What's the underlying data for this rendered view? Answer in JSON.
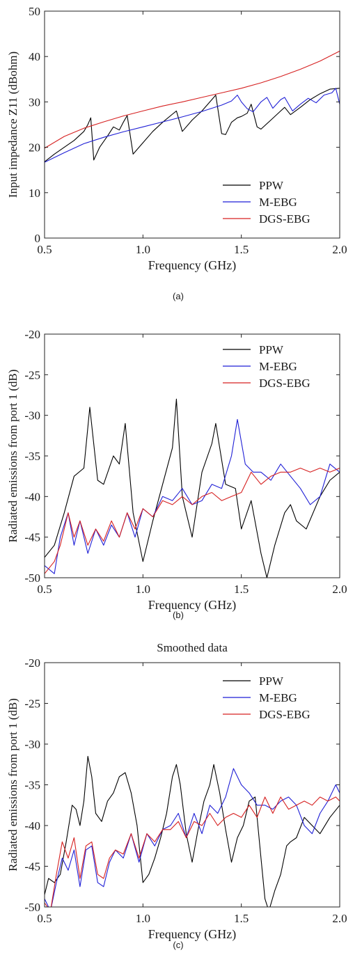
{
  "figure": {
    "captions": [
      "(a)",
      "(b)",
      "(c)"
    ]
  },
  "chart_data": [
    {
      "type": "line",
      "title": "",
      "xlabel": "Frequency (GHz)",
      "ylabel": "Input impedance Z11 (dBohm)",
      "xlim": [
        0.5,
        2.0
      ],
      "ylim": [
        0,
        50
      ],
      "xticks": [
        "0.5",
        "1.0",
        "1.5",
        "2.0"
      ],
      "yticks": [
        "0",
        "10",
        "20",
        "30",
        "40",
        "50"
      ],
      "legend_position": "bottom-right",
      "grid": false,
      "series": [
        {
          "name": "PPW",
          "color": "#000000",
          "x": [
            0.5,
            0.55,
            0.6,
            0.65,
            0.7,
            0.72,
            0.735,
            0.75,
            0.78,
            0.82,
            0.85,
            0.88,
            0.9,
            0.92,
            0.95,
            1.0,
            1.05,
            1.1,
            1.15,
            1.17,
            1.2,
            1.25,
            1.3,
            1.35,
            1.37,
            1.4,
            1.42,
            1.45,
            1.48,
            1.5,
            1.53,
            1.55,
            1.58,
            1.6,
            1.65,
            1.7,
            1.72,
            1.75,
            1.8,
            1.85,
            1.9,
            1.95,
            2.0
          ],
          "y": [
            16.8,
            18.5,
            20,
            21.5,
            23.5,
            25,
            26.5,
            17.2,
            20,
            22.5,
            24.5,
            23.8,
            25.5,
            27,
            18.5,
            21,
            23.5,
            25.5,
            27.3,
            28,
            23.5,
            26,
            28,
            30.5,
            31.5,
            23,
            22.8,
            25.5,
            26.5,
            26.8,
            27.5,
            29.5,
            24.5,
            24,
            26,
            28,
            28.8,
            27.2,
            28.8,
            30.5,
            31.8,
            32.8,
            33
          ]
        },
        {
          "name": "M-EBG",
          "color": "#1f1fd6",
          "x": [
            0.5,
            0.6,
            0.7,
            0.8,
            0.9,
            1.0,
            1.1,
            1.2,
            1.3,
            1.4,
            1.45,
            1.48,
            1.5,
            1.53,
            1.56,
            1.6,
            1.63,
            1.66,
            1.7,
            1.72,
            1.76,
            1.8,
            1.84,
            1.88,
            1.92,
            1.96,
            1.98,
            2.0
          ],
          "y": [
            16.7,
            18.8,
            20.8,
            22.2,
            23.4,
            24.5,
            25.6,
            26.7,
            27.9,
            29.3,
            30.2,
            31.5,
            30.0,
            28.5,
            27.8,
            30.0,
            31.0,
            28.6,
            30.5,
            31.0,
            28.0,
            29.5,
            30.8,
            29.8,
            31.5,
            32.0,
            33.0,
            29.5
          ]
        },
        {
          "name": "DGS-EBG",
          "color": "#d62020",
          "x": [
            0.5,
            0.6,
            0.7,
            0.8,
            0.9,
            1.0,
            1.1,
            1.2,
            1.3,
            1.4,
            1.5,
            1.6,
            1.7,
            1.8,
            1.9,
            2.0
          ],
          "y": [
            19.8,
            22.4,
            24.2,
            25.6,
            26.9,
            28.0,
            29.1,
            30.0,
            31.0,
            32.0,
            33.0,
            34.2,
            35.6,
            37.2,
            39.0,
            41.2
          ]
        }
      ]
    },
    {
      "type": "line",
      "title": "",
      "xlabel": "Frequency (GHz)",
      "ylabel": "Radiated emissions from port 1 (dB)",
      "xlim": [
        0.5,
        2.0
      ],
      "ylim": [
        -50,
        -20
      ],
      "xticks": [
        "0.5",
        "1.0",
        "1.5",
        "2.0"
      ],
      "yticks": [
        "-50",
        "-45",
        "-40",
        "-35",
        "-30",
        "-25",
        "-20"
      ],
      "legend_position": "top-right",
      "grid": false,
      "series": [
        {
          "name": "PPW",
          "color": "#000000",
          "x": [
            0.5,
            0.55,
            0.6,
            0.65,
            0.7,
            0.73,
            0.77,
            0.8,
            0.85,
            0.88,
            0.91,
            0.95,
            1.0,
            1.05,
            1.1,
            1.15,
            1.17,
            1.2,
            1.25,
            1.3,
            1.35,
            1.37,
            1.42,
            1.47,
            1.5,
            1.55,
            1.6,
            1.63,
            1.67,
            1.72,
            1.75,
            1.78,
            1.83,
            1.9,
            1.95,
            2.0
          ],
          "y": [
            -47.5,
            -46,
            -42,
            -37.5,
            -36.5,
            -29,
            -38,
            -38.5,
            -35,
            -36,
            -31,
            -42,
            -48,
            -43,
            -38.5,
            -34,
            -28,
            -40,
            -45,
            -37,
            -33.5,
            -31,
            -38.5,
            -39,
            -44,
            -40.5,
            -47,
            -50,
            -46,
            -42,
            -41,
            -43,
            -44,
            -40,
            -38,
            -37
          ]
        },
        {
          "name": "M-EBG",
          "color": "#1f1fd6",
          "x": [
            0.5,
            0.55,
            0.58,
            0.62,
            0.65,
            0.68,
            0.72,
            0.76,
            0.8,
            0.84,
            0.88,
            0.92,
            0.96,
            1.0,
            1.05,
            1.1,
            1.15,
            1.2,
            1.25,
            1.3,
            1.35,
            1.4,
            1.45,
            1.48,
            1.52,
            1.56,
            1.6,
            1.65,
            1.7,
            1.75,
            1.8,
            1.85,
            1.9,
            1.95,
            2.0
          ],
          "y": [
            -48.5,
            -49.5,
            -45,
            -42,
            -46,
            -43,
            -47,
            -44,
            -46,
            -43.5,
            -45,
            -42,
            -45,
            -41.5,
            -42.5,
            -40,
            -40.5,
            -39,
            -41,
            -40.5,
            -38.5,
            -39,
            -35,
            -30.5,
            -36,
            -37,
            -37,
            -38,
            -36,
            -37.5,
            -39,
            -41,
            -40,
            -36,
            -37
          ]
        },
        {
          "name": "DGS-EBG",
          "color": "#d62020",
          "x": [
            0.5,
            0.55,
            0.58,
            0.62,
            0.65,
            0.68,
            0.72,
            0.76,
            0.8,
            0.84,
            0.88,
            0.92,
            0.96,
            1.0,
            1.05,
            1.1,
            1.15,
            1.2,
            1.25,
            1.3,
            1.35,
            1.4,
            1.45,
            1.5,
            1.55,
            1.6,
            1.65,
            1.7,
            1.75,
            1.8,
            1.85,
            1.9,
            1.95,
            2.0
          ],
          "y": [
            -49.5,
            -48,
            -46,
            -42,
            -45,
            -43,
            -46,
            -44,
            -45.5,
            -43,
            -45,
            -42,
            -44,
            -41.5,
            -42.5,
            -40.5,
            -41,
            -40,
            -41,
            -40,
            -39.5,
            -40.5,
            -40,
            -39.5,
            -37,
            -38.5,
            -37.5,
            -37,
            -37,
            -36.5,
            -37,
            -36.5,
            -37,
            -36.5
          ]
        }
      ]
    },
    {
      "type": "line",
      "title": "Smoothed data",
      "xlabel": "Frequency (GHz)",
      "ylabel": "Radiated emissions from port 1 (dB)",
      "xlim": [
        0.5,
        2.0
      ],
      "ylim": [
        -50,
        -20
      ],
      "xticks": [
        "0.5",
        "1.0",
        "1.5",
        "2.0"
      ],
      "yticks": [
        "-50",
        "-45",
        "-40",
        "-35",
        "-30",
        "-25",
        "-20"
      ],
      "legend_position": "top-right",
      "grid": false,
      "series": [
        {
          "name": "PPW",
          "color": "#000000",
          "x": [
            0.5,
            0.52,
            0.55,
            0.58,
            0.61,
            0.64,
            0.66,
            0.68,
            0.7,
            0.72,
            0.74,
            0.76,
            0.79,
            0.82,
            0.85,
            0.88,
            0.91,
            0.94,
            0.97,
            1.0,
            1.03,
            1.06,
            1.09,
            1.12,
            1.15,
            1.17,
            1.19,
            1.22,
            1.25,
            1.28,
            1.31,
            1.34,
            1.36,
            1.39,
            1.42,
            1.45,
            1.48,
            1.51,
            1.54,
            1.57,
            1.6,
            1.62,
            1.64,
            1.67,
            1.7,
            1.73,
            1.75,
            1.78,
            1.82,
            1.86,
            1.9,
            1.95,
            2.0
          ],
          "y": [
            -48.5,
            -46.5,
            -47,
            -46,
            -42,
            -37.5,
            -38,
            -40,
            -37,
            -31.5,
            -34,
            -38.5,
            -39.5,
            -37,
            -36,
            -34,
            -33.5,
            -36,
            -40,
            -47,
            -46,
            -44,
            -41.5,
            -38.5,
            -34,
            -32.5,
            -35,
            -41,
            -44.5,
            -40.5,
            -37,
            -35,
            -32.5,
            -36,
            -40.5,
            -44.5,
            -41.5,
            -40,
            -37,
            -36.5,
            -44,
            -49,
            -50.5,
            -48,
            -46,
            -42.5,
            -42,
            -41.5,
            -39,
            -40,
            -41,
            -39,
            -37.5
          ]
        },
        {
          "name": "M-EBG",
          "color": "#1f1fd6",
          "x": [
            0.5,
            0.53,
            0.56,
            0.59,
            0.62,
            0.65,
            0.68,
            0.71,
            0.74,
            0.77,
            0.8,
            0.83,
            0.86,
            0.9,
            0.94,
            0.98,
            1.02,
            1.06,
            1.1,
            1.14,
            1.18,
            1.22,
            1.26,
            1.3,
            1.34,
            1.38,
            1.42,
            1.46,
            1.5,
            1.54,
            1.58,
            1.62,
            1.66,
            1.7,
            1.74,
            1.78,
            1.82,
            1.86,
            1.9,
            1.94,
            1.98,
            2.0
          ],
          "y": [
            -49,
            -50.5,
            -47,
            -44,
            -45.5,
            -43,
            -47.5,
            -43,
            -42.5,
            -47,
            -47.5,
            -44.5,
            -43,
            -44,
            -41,
            -44.5,
            -41,
            -42.5,
            -40.5,
            -40,
            -38.5,
            -41.5,
            -38.5,
            -41,
            -37.5,
            -38.5,
            -36.5,
            -33,
            -35,
            -36,
            -37.5,
            -37.5,
            -38,
            -37,
            -36.5,
            -37.5,
            -40,
            -41,
            -38.5,
            -37,
            -35,
            -36
          ]
        },
        {
          "name": "DGS-EBG",
          "color": "#d62020",
          "x": [
            0.5,
            0.53,
            0.56,
            0.59,
            0.62,
            0.65,
            0.68,
            0.71,
            0.74,
            0.77,
            0.8,
            0.83,
            0.86,
            0.9,
            0.94,
            0.98,
            1.02,
            1.06,
            1.1,
            1.14,
            1.18,
            1.22,
            1.26,
            1.3,
            1.34,
            1.38,
            1.42,
            1.46,
            1.5,
            1.54,
            1.58,
            1.62,
            1.66,
            1.7,
            1.74,
            1.78,
            1.82,
            1.86,
            1.9,
            1.94,
            1.98,
            2.0
          ],
          "y": [
            -49.5,
            -50.5,
            -46,
            -42,
            -44,
            -41.5,
            -46.5,
            -42.5,
            -42,
            -46,
            -46.5,
            -44,
            -43,
            -43.5,
            -41,
            -44,
            -41,
            -42,
            -40.5,
            -40.5,
            -39.5,
            -41.5,
            -39.5,
            -40,
            -38.5,
            -40,
            -39,
            -38.5,
            -39,
            -37.5,
            -39,
            -36.5,
            -38.5,
            -36.5,
            -38,
            -37.5,
            -37,
            -37.5,
            -36.5,
            -37,
            -36.5,
            -37
          ]
        }
      ]
    }
  ]
}
